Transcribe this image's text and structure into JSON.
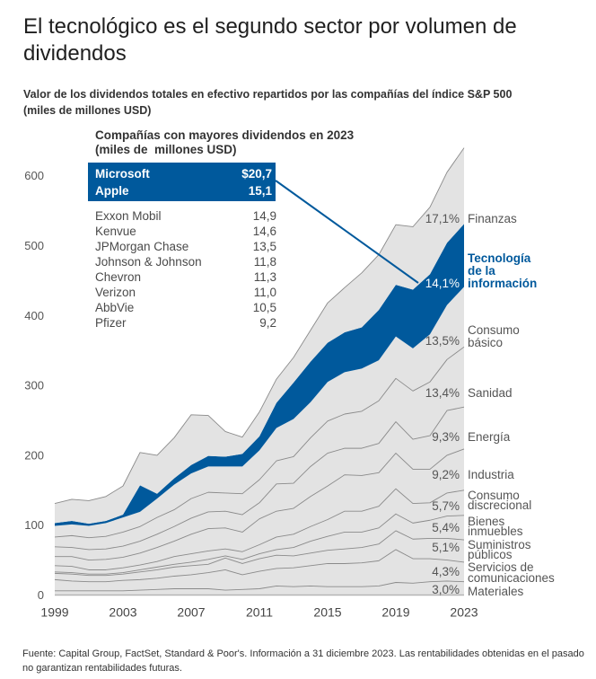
{
  "header": {
    "title": "El tecnológico es el segundo sector por volumen de dividendos",
    "subtitle": "Valor de los dividendos totales en efectivo repartidos por las compañías del índice S&P 500 (miles de millones USD)"
  },
  "top_companies": {
    "heading": "Compañías con mayores dividendos en 2023",
    "unit": "(miles de  millones USD)",
    "highlighted": [
      {
        "name": "Microsoft",
        "value": "$20,7"
      },
      {
        "name": "Apple",
        "value": "15,1"
      }
    ],
    "rows": [
      {
        "name": "Exxon Mobil",
        "value": "14,9"
      },
      {
        "name": "Kenvue",
        "value": "14,6"
      },
      {
        "name": "JPMorgan Chase",
        "value": "13,5"
      },
      {
        "name": "Johnson & Johnson",
        "value": "11,8"
      },
      {
        "name": "Chevron",
        "value": "11,3"
      },
      {
        "name": "Verizon",
        "value": "11,0"
      },
      {
        "name": "AbbVie",
        "value": "10,5"
      },
      {
        "name": "Pfizer",
        "value": "9,2"
      }
    ]
  },
  "chart_data": {
    "type": "area",
    "stacked": true,
    "title": "Valor de los dividendos totales en efectivo repartidos por las compañías del índice S&P 500 (miles de millones USD)",
    "xlabel": "",
    "ylabel": "miles de millones USD",
    "ylim": [
      0,
      650
    ],
    "grid": false,
    "legend": "right (inline labels with 2023 share)",
    "x": [
      1999,
      2000,
      2001,
      2002,
      2003,
      2004,
      2005,
      2006,
      2007,
      2008,
      2009,
      2010,
      2011,
      2012,
      2013,
      2014,
      2015,
      2016,
      2017,
      2018,
      2019,
      2020,
      2021,
      2022,
      2023
    ],
    "xticks": [
      1999,
      2003,
      2007,
      2011,
      2015,
      2019,
      2023
    ],
    "yticks": [
      0,
      100,
      200,
      300,
      400,
      500,
      600
    ],
    "colors": {
      "highlight": "#00599C",
      "area": "#E3E3E3",
      "line": "#8A8A8A",
      "baseline": "#B5B5B5"
    },
    "series": [
      {
        "name": "Materiales",
        "label": "Materiales",
        "share_2023": "3,0%",
        "highlight": false,
        "values": [
          6,
          6,
          6,
          6,
          6,
          7,
          8,
          9,
          9,
          9,
          7,
          8,
          9,
          13,
          12,
          13,
          12,
          12,
          12,
          13,
          18,
          17,
          19,
          20,
          19
        ]
      },
      {
        "name": "Servicios de comunicaciones",
        "label": "Servicios de\ncomunicaciones",
        "share_2023": "4,3%",
        "highlight": false,
        "values": [
          16,
          14,
          13,
          13,
          15,
          15,
          16,
          18,
          20,
          23,
          29,
          21,
          25,
          25,
          27,
          29,
          33,
          33,
          34,
          36,
          47,
          35,
          33,
          30,
          28
        ]
      },
      {
        "name": "Suministros públicos",
        "label": "Suministros\npúblicos",
        "share_2023": "5,1%",
        "highlight": false,
        "values": [
          9,
          10,
          9,
          9,
          9,
          11,
          12,
          13,
          13,
          12,
          17,
          16,
          18,
          19,
          17,
          18,
          19,
          21,
          22,
          24,
          27,
          28,
          29,
          31,
          32
        ]
      },
      {
        "name": "Bienes inmuebles",
        "label": "Bienes\ninmuebles",
        "share_2023": "5,4%",
        "highlight": false,
        "values": [
          2,
          2,
          2,
          2,
          2,
          3,
          4,
          4,
          5,
          7,
          3,
          6,
          7,
          8,
          12,
          17,
          20,
          24,
          22,
          23,
          24,
          23,
          26,
          32,
          35
        ]
      },
      {
        "name": "Consumo discrecional",
        "label": "Consumo\ndiscrecional",
        "share_2023": "5,7%",
        "highlight": false,
        "values": [
          9,
          9,
          6,
          6,
          7,
          7,
          8,
          11,
          12,
          12,
          10,
          11,
          13,
          18,
          19,
          21,
          24,
          30,
          30,
          31,
          36,
          28,
          25,
          33,
          36
        ]
      },
      {
        "name": "Industria",
        "label": "Industria",
        "share_2023": "9,2%",
        "highlight": false,
        "values": [
          13,
          14,
          14,
          15,
          15,
          17,
          20,
          22,
          28,
          32,
          30,
          28,
          37,
          37,
          37,
          43,
          48,
          52,
          51,
          48,
          51,
          49,
          48,
          54,
          59
        ]
      },
      {
        "name": "Energía",
        "label": "Energía",
        "share_2023": "9,3%",
        "highlight": false,
        "values": [
          14,
          13,
          15,
          15,
          16,
          17,
          19,
          21,
          23,
          24,
          24,
          25,
          23,
          39,
          36,
          43,
          47,
          38,
          39,
          42,
          45,
          43,
          48,
          64,
          60
        ]
      },
      {
        "name": "Sanidad",
        "label": "Sanidad",
        "share_2023": "13,4%",
        "highlight": false,
        "values": [
          14,
          17,
          17,
          18,
          20,
          21,
          24,
          24,
          28,
          28,
          26,
          30,
          33,
          33,
          38,
          41,
          46,
          49,
          53,
          61,
          62,
          69,
          77,
          73,
          86
        ]
      },
      {
        "name": "Consumo básico",
        "label": "Consumo\nbásico",
        "share_2023": "13,5%",
        "highlight": false,
        "values": [
          16,
          16,
          17,
          19,
          21,
          21,
          27,
          36,
          36,
          37,
          38,
          39,
          42,
          47,
          54,
          51,
          56,
          60,
          61,
          58,
          60,
          61,
          68,
          78,
          86
        ]
      },
      {
        "name": "Tecnología de la información",
        "label": "Tecnología\nde la\ninformación",
        "share_2023": "14,1%",
        "highlight": true,
        "values": [
          4,
          5,
          3,
          3,
          4,
          38,
          7,
          9,
          12,
          15,
          14,
          18,
          20,
          36,
          52,
          58,
          56,
          57,
          59,
          72,
          74,
          84,
          86,
          89,
          90
        ]
      },
      {
        "name": "Finanzas",
        "label": "Finanzas",
        "share_2023": "17,1%",
        "highlight": false,
        "values": [
          28,
          31,
          33,
          35,
          41,
          47,
          55,
          58,
          72,
          58,
          36,
          24,
          35,
          34,
          36,
          45,
          57,
          64,
          78,
          79,
          86,
          90,
          96,
          101,
          109
        ]
      }
    ]
  },
  "footnote": "Fuente: Capital Group, FactSet, Standard & Poor's. Información a 31 diciembre 2023. Las rentabilidades obtenidas en el pasado no garantizan rentabilidades futuras."
}
